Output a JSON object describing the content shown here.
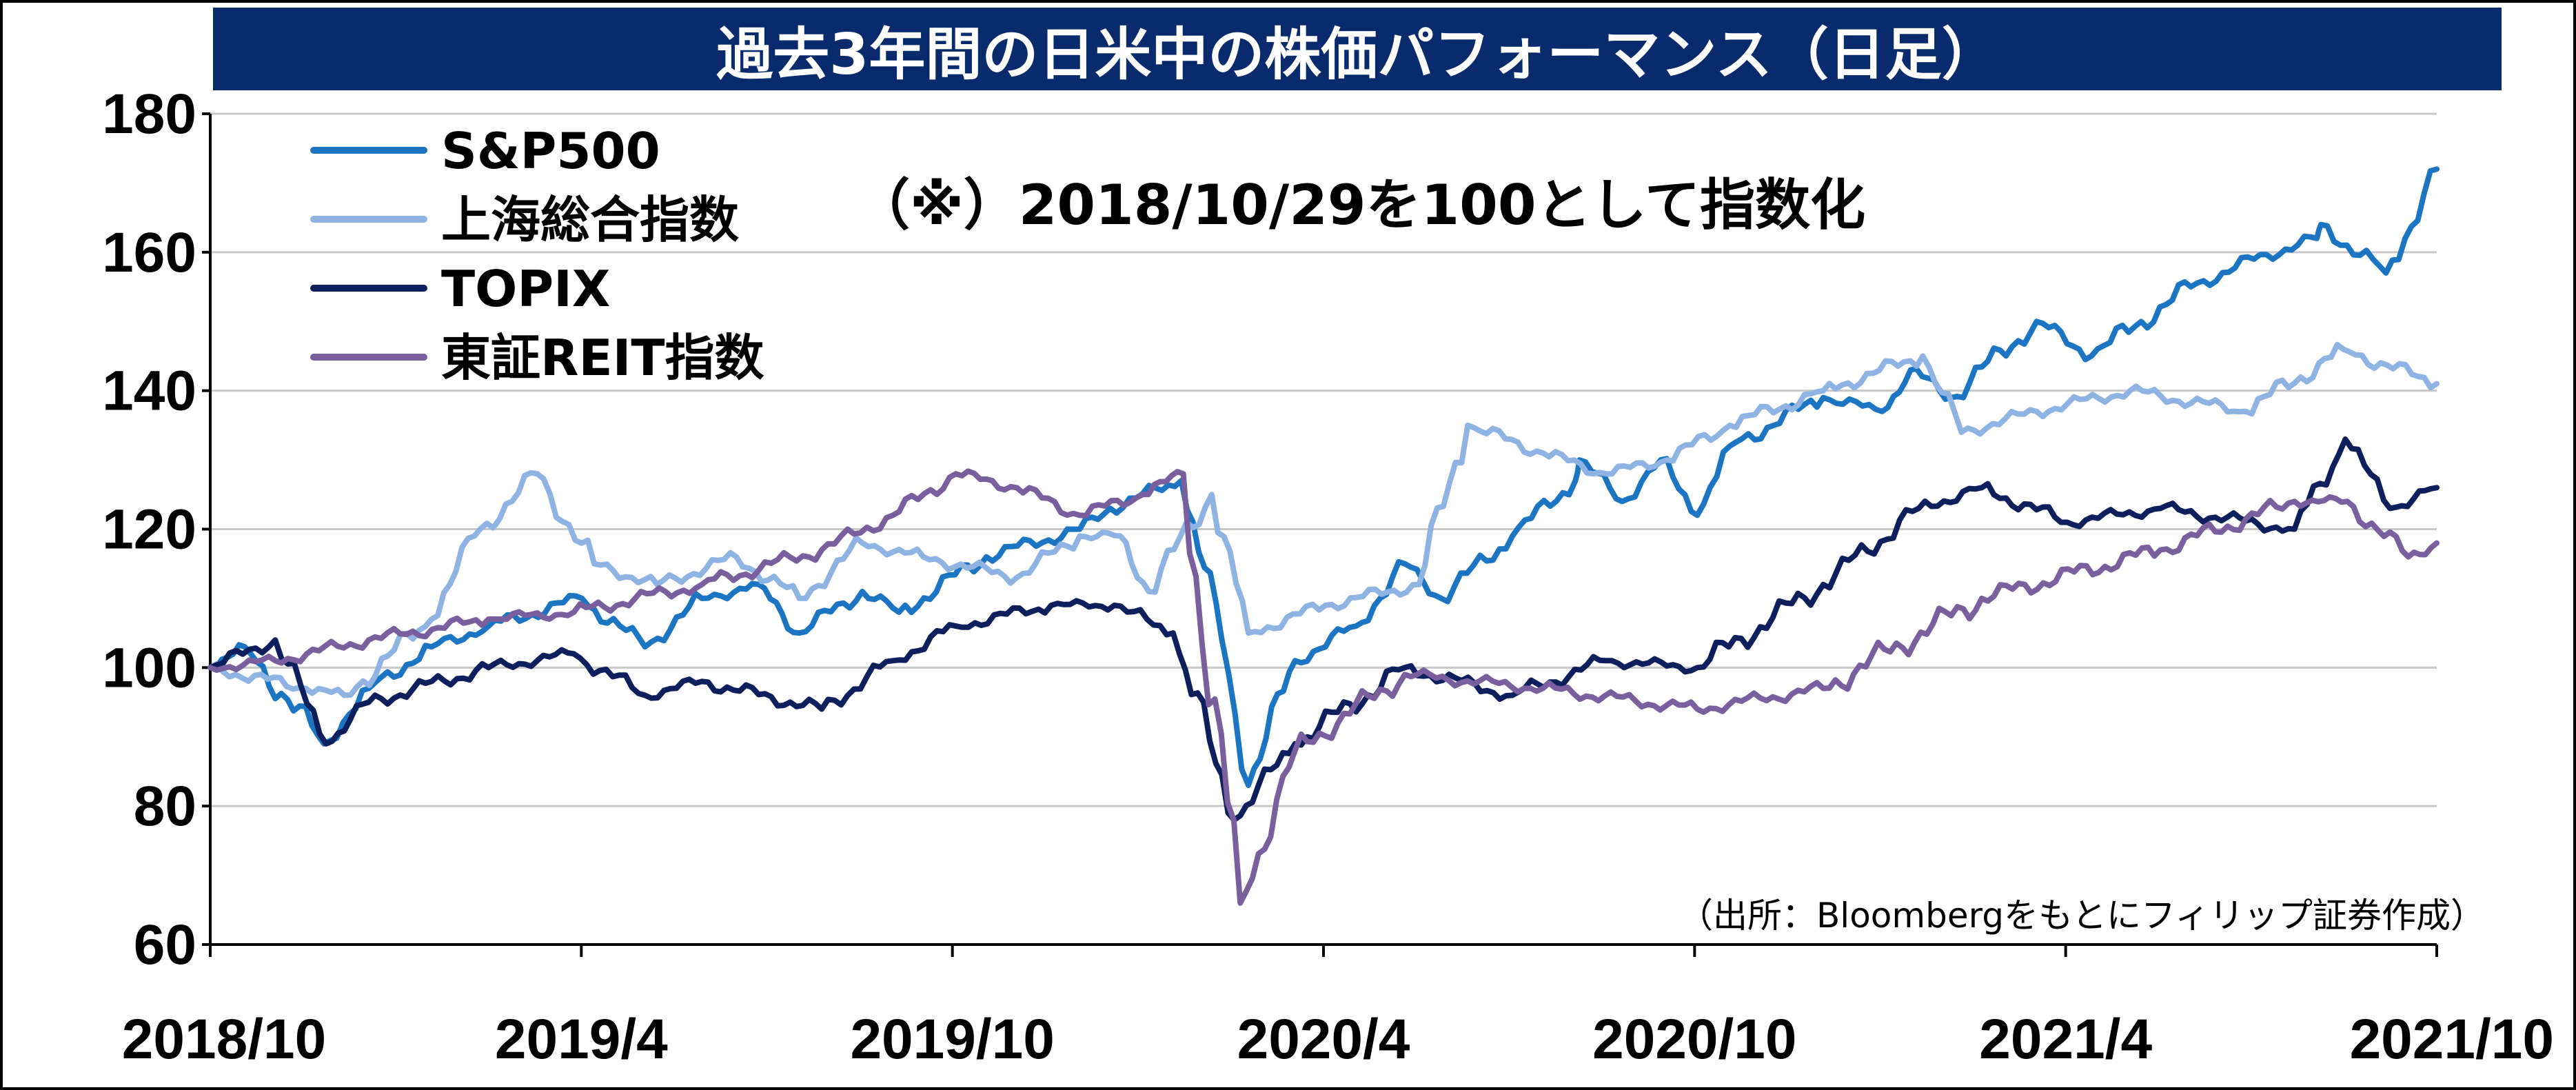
{
  "title": "過去3年間の日米中の株価パフォーマンス（日足）",
  "colors": {
    "title_bg": "#0a2a6e",
    "title_text": "#ffffff",
    "grid": "#c8c8c8",
    "axis": "#000000"
  },
  "annotation": "（※）2018/10/29を100として指数化",
  "source": "（出所：Bloombergをもとにフィリップ証券作成）",
  "chart_data": {
    "type": "line",
    "ylim": [
      60,
      180
    ],
    "yticks": [
      60,
      80,
      100,
      120,
      140,
      160,
      180
    ],
    "x_ticks": [
      "2018/10",
      "2019/4",
      "2019/10",
      "2020/4",
      "2020/10",
      "2021/4",
      "2021/10"
    ],
    "x_range": [
      "2018/10/29",
      "2021/10/29"
    ],
    "grid": "horizontal",
    "legend_position": "top-left",
    "series": [
      {
        "name": "S&P500",
        "color": "#1c75c2",
        "points": [
          [
            "2018/10/29",
            100
          ],
          [
            "2018/11/15",
            103
          ],
          [
            "2018/12/24",
            89
          ],
          [
            "2019/1/15",
            97
          ],
          [
            "2019/2/15",
            103
          ],
          [
            "2019/3/15",
            106
          ],
          [
            "2019/4/30",
            110
          ],
          [
            "2019/5/31",
            103
          ],
          [
            "2019/6/28",
            110
          ],
          [
            "2019/7/26",
            112
          ],
          [
            "2019/8/15",
            105
          ],
          [
            "2019/9/15",
            111
          ],
          [
            "2019/10/3",
            108
          ],
          [
            "2019/11/15",
            116
          ],
          [
            "2019/12/31",
            120
          ],
          [
            "2020/1/15",
            123
          ],
          [
            "2020/2/19",
            127
          ],
          [
            "2020/3/10",
            104
          ],
          [
            "2020/3/23",
            83
          ],
          [
            "2020/4/15",
            101
          ],
          [
            "2020/5/15",
            106
          ],
          [
            "2020/6/8",
            115
          ],
          [
            "2020/6/26",
            110
          ],
          [
            "2020/7/31",
            119
          ],
          [
            "2020/8/31",
            127
          ],
          [
            "2020/9/2",
            130
          ],
          [
            "2020/9/23",
            124
          ],
          [
            "2020/10/12",
            130
          ],
          [
            "2020/10/30",
            122
          ],
          [
            "2020/11/15",
            132
          ],
          [
            "2020/12/31",
            139
          ],
          [
            "2021/1/29",
            137
          ],
          [
            "2021/2/12",
            143
          ],
          [
            "2021/3/4",
            139
          ],
          [
            "2021/4/15",
            150
          ],
          [
            "2021/5/12",
            145
          ],
          [
            "2021/6/30",
            155
          ],
          [
            "2021/7/31",
            159
          ],
          [
            "2021/8/31",
            162
          ],
          [
            "2021/9/2",
            164
          ],
          [
            "2021/10/4",
            157
          ],
          [
            "2021/10/29",
            172
          ]
        ]
      },
      {
        "name": "上海総合指数",
        "color": "#8fb4e3",
        "points": [
          [
            "2018/10/29",
            100
          ],
          [
            "2018/12/15",
            97
          ],
          [
            "2019/1/3",
            96
          ],
          [
            "2019/2/15",
            107
          ],
          [
            "2019/3/8",
            119
          ],
          [
            "2019/4/8",
            128
          ],
          [
            "2019/5/6",
            115
          ],
          [
            "2019/6/6",
            112
          ],
          [
            "2019/7/15",
            116
          ],
          [
            "2019/8/15",
            110
          ],
          [
            "2019/9/15",
            118
          ],
          [
            "2019/10/15",
            116
          ],
          [
            "2019/11/30",
            113
          ],
          [
            "2019/12/31",
            119
          ],
          [
            "2020/1/20",
            119
          ],
          [
            "2020/2/3",
            111
          ],
          [
            "2020/3/5",
            125
          ],
          [
            "2020/3/23",
            105
          ],
          [
            "2020/4/30",
            109
          ],
          [
            "2020/6/15",
            112
          ],
          [
            "2020/7/9",
            135
          ],
          [
            "2020/8/15",
            131
          ],
          [
            "2020/9/15",
            128
          ],
          [
            "2020/10/15",
            130
          ],
          [
            "2020/11/15",
            135
          ],
          [
            "2020/12/31",
            140
          ],
          [
            "2021/2/18",
            145
          ],
          [
            "2021/3/9",
            134
          ],
          [
            "2021/4/15",
            137
          ],
          [
            "2021/5/31",
            140
          ],
          [
            "2021/7/27",
            137
          ],
          [
            "2021/9/13",
            146
          ],
          [
            "2021/10/29",
            141
          ]
        ]
      },
      {
        "name": "TOPIX",
        "color": "#0d1f5c",
        "points": [
          [
            "2018/10/29",
            100
          ],
          [
            "2018/11/30",
            104
          ],
          [
            "2018/12/25",
            89
          ],
          [
            "2019/1/15",
            95
          ],
          [
            "2019/3/15",
            100
          ],
          [
            "2019/4/26",
            102
          ],
          [
            "2019/5/31",
            96
          ],
          [
            "2019/6/28",
            98
          ],
          [
            "2019/8/26",
            94
          ],
          [
            "2019/9/30",
            101
          ],
          [
            "2019/10/31",
            106
          ],
          [
            "2019/12/17",
            109
          ],
          [
            "2020/1/17",
            109
          ],
          [
            "2020/2/15",
            105
          ],
          [
            "2020/3/16",
            78
          ],
          [
            "2020/4/15",
            89
          ],
          [
            "2020/6/8",
            100
          ],
          [
            "2020/7/31",
            96
          ],
          [
            "2020/9/15",
            101
          ],
          [
            "2020/10/30",
            100
          ],
          [
            "2020/12/31",
            112
          ],
          [
            "2021/2/16",
            123
          ],
          [
            "2021/3/19",
            126
          ],
          [
            "2021/4/30",
            121
          ],
          [
            "2021/6/15",
            123
          ],
          [
            "2021/8/20",
            120
          ],
          [
            "2021/9/14",
            133
          ],
          [
            "2021/10/6",
            123
          ],
          [
            "2021/10/29",
            126
          ]
        ]
      },
      {
        "name": "東証REIT指数",
        "color": "#7a5f9e",
        "points": [
          [
            "2018/10/29",
            100
          ],
          [
            "2018/11/30",
            101
          ],
          [
            "2019/1/15",
            104
          ],
          [
            "2019/3/15",
            107
          ],
          [
            "2019/4/26",
            108
          ],
          [
            "2019/6/28",
            112
          ],
          [
            "2019/8/26",
            117
          ],
          [
            "2019/9/30",
            122
          ],
          [
            "2019/10/31",
            128
          ],
          [
            "2019/11/30",
            126
          ],
          [
            "2019/12/31",
            122
          ],
          [
            "2020/1/31",
            125
          ],
          [
            "2020/2/20",
            128
          ],
          [
            "2020/3/19",
            66
          ],
          [
            "2020/4/15",
            88
          ],
          [
            "2020/6/8",
            99
          ],
          [
            "2020/8/15",
            97
          ],
          [
            "2020/10/30",
            94
          ],
          [
            "2020/12/31",
            97
          ],
          [
            "2021/3/19",
            110
          ],
          [
            "2021/6/15",
            117
          ],
          [
            "2021/8/20",
            124
          ],
          [
            "2021/9/15",
            124
          ],
          [
            "2021/10/15",
            116
          ],
          [
            "2021/10/29",
            118
          ]
        ]
      }
    ]
  }
}
